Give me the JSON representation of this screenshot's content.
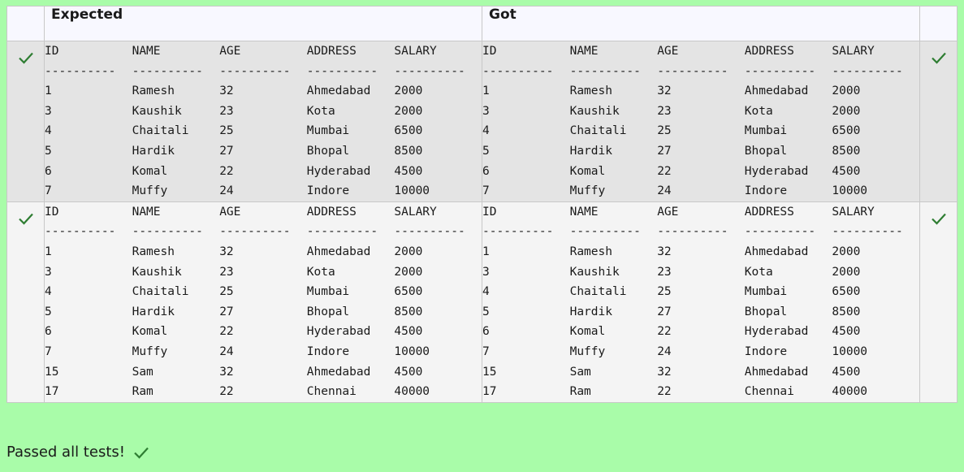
{
  "header": {
    "expected": "Expected",
    "got": "Got"
  },
  "columns": [
    "ID",
    "NAME",
    "AGE",
    "ADDRESS",
    "SALARY"
  ],
  "separator": "----------",
  "tests": [
    {
      "rows": [
        [
          "1",
          "Ramesh",
          "32",
          "Ahmedabad",
          "2000"
        ],
        [
          "3",
          "Kaushik",
          "23",
          "Kota",
          "2000"
        ],
        [
          "4",
          "Chaitali",
          "25",
          "Mumbai",
          "6500"
        ],
        [
          "5",
          "Hardik",
          "27",
          "Bhopal",
          "8500"
        ],
        [
          "6",
          "Komal",
          "22",
          "Hyderabad",
          "4500"
        ],
        [
          "7",
          "Muffy",
          "24",
          "Indore",
          "10000"
        ]
      ]
    },
    {
      "rows": [
        [
          "1",
          "Ramesh",
          "32",
          "Ahmedabad",
          "2000"
        ],
        [
          "3",
          "Kaushik",
          "23",
          "Kota",
          "2000"
        ],
        [
          "4",
          "Chaitali",
          "25",
          "Mumbai",
          "6500"
        ],
        [
          "5",
          "Hardik",
          "27",
          "Bhopal",
          "8500"
        ],
        [
          "6",
          "Komal",
          "22",
          "Hyderabad",
          "4500"
        ],
        [
          "7",
          "Muffy",
          "24",
          "Indore",
          "10000"
        ],
        [
          "15",
          "Sam",
          "32",
          "Ahmedabad",
          "4500"
        ],
        [
          "17",
          "Ram",
          "22",
          "Chennai",
          "40000"
        ]
      ]
    }
  ],
  "footer": {
    "text": "Passed all tests!"
  },
  "colors": {
    "background": "#a9fca9",
    "check": "#2e7d32"
  },
  "icons": {
    "pass": "check-icon"
  }
}
